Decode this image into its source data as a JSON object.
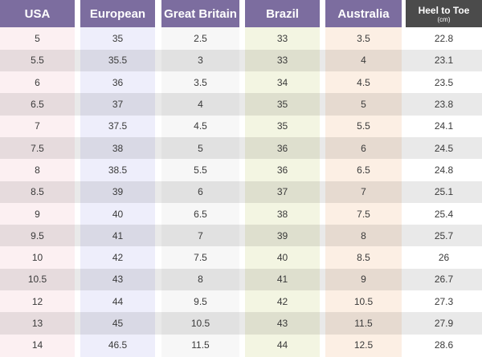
{
  "table": {
    "header": [
      "USA",
      "European",
      "Great Britain",
      "Brazil",
      "Australia",
      "Heel to Toe"
    ],
    "unit": "(cm)",
    "rows": [
      [
        "5",
        "35",
        "2.5",
        "33",
        "3.5",
        "22.8"
      ],
      [
        "5.5",
        "35.5",
        "3",
        "33",
        "4",
        "23.1"
      ],
      [
        "6",
        "36",
        "3.5",
        "34",
        "4.5",
        "23.5"
      ],
      [
        "6.5",
        "37",
        "4",
        "35",
        "5",
        "23.8"
      ],
      [
        "7",
        "37.5",
        "4.5",
        "35",
        "5.5",
        "24.1"
      ],
      [
        "7.5",
        "38",
        "5",
        "36",
        "6",
        "24.5"
      ],
      [
        "8",
        "38.5",
        "5.5",
        "36",
        "6.5",
        "24.8"
      ],
      [
        "8.5",
        "39",
        "6",
        "37",
        "7",
        "25.1"
      ],
      [
        "9",
        "40",
        "6.5",
        "38",
        "7.5",
        "25.4"
      ],
      [
        "9.5",
        "41",
        "7",
        "39",
        "8",
        "25.7"
      ],
      [
        "10",
        "42",
        "7.5",
        "40",
        "8.5",
        "26"
      ],
      [
        "10.5",
        "43",
        "8",
        "41",
        "9",
        "26.7"
      ],
      [
        "12",
        "44",
        "9.5",
        "42",
        "10.5",
        "27.3"
      ],
      [
        "13",
        "45",
        "10.5",
        "43",
        "11.5",
        "27.9"
      ],
      [
        "14",
        "46.5",
        "11.5",
        "44",
        "12.5",
        "28.6"
      ]
    ]
  }
}
